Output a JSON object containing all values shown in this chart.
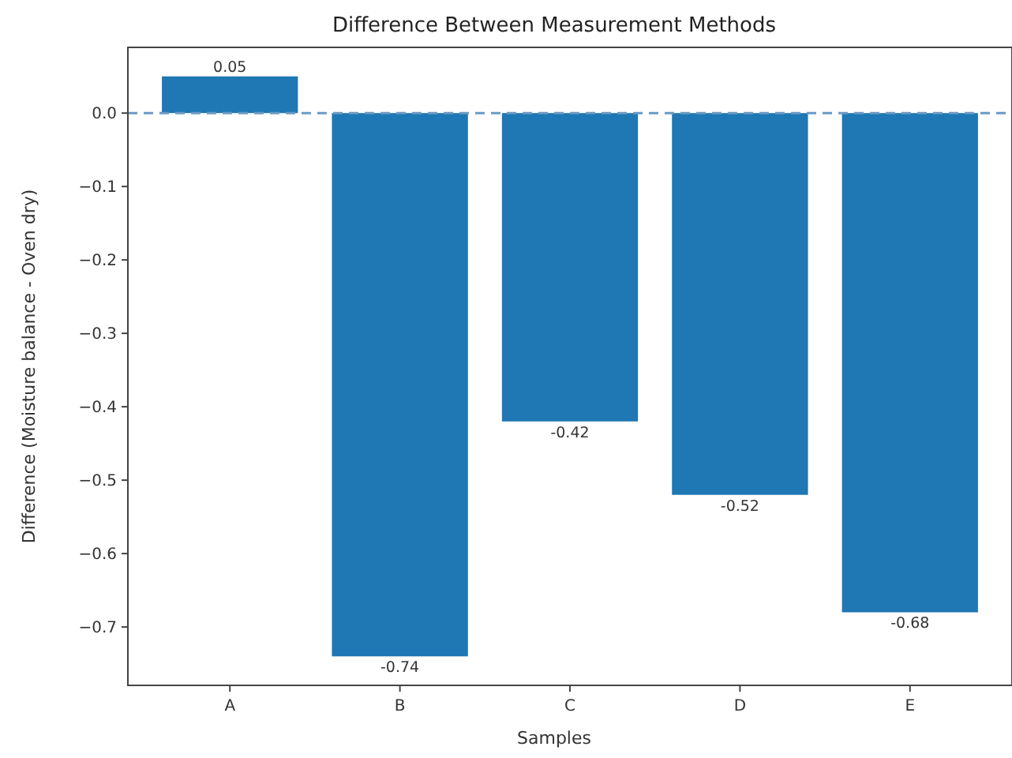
{
  "chart_data": {
    "type": "bar",
    "title": "Difference Between Measurement Methods",
    "xlabel": "Samples",
    "ylabel": "Difference (Moisture balance - Oven dry)",
    "categories": [
      "A",
      "B",
      "C",
      "D",
      "E"
    ],
    "values": [
      0.05,
      -0.74,
      -0.42,
      -0.52,
      -0.68
    ],
    "color": "#1f77b4",
    "ylim": [
      -0.7795,
      0.0895
    ],
    "yticks": [
      {
        "value": 0,
        "label": "0.0"
      },
      {
        "value": -0.1,
        "label": "−0.1"
      },
      {
        "value": -0.2,
        "label": "−0.2"
      },
      {
        "value": -0.3,
        "label": "−0.3"
      },
      {
        "value": -0.4,
        "label": "−0.4"
      },
      {
        "value": -0.5,
        "label": "−0.5"
      },
      {
        "value": -0.6,
        "label": "−0.6"
      },
      {
        "value": -0.7,
        "label": "−0.7"
      }
    ],
    "ref_lines": [
      {
        "axis": "y",
        "value": 0,
        "color": "#6a9ac4",
        "line_style": "dashed"
      }
    ],
    "data_labels": true
  }
}
